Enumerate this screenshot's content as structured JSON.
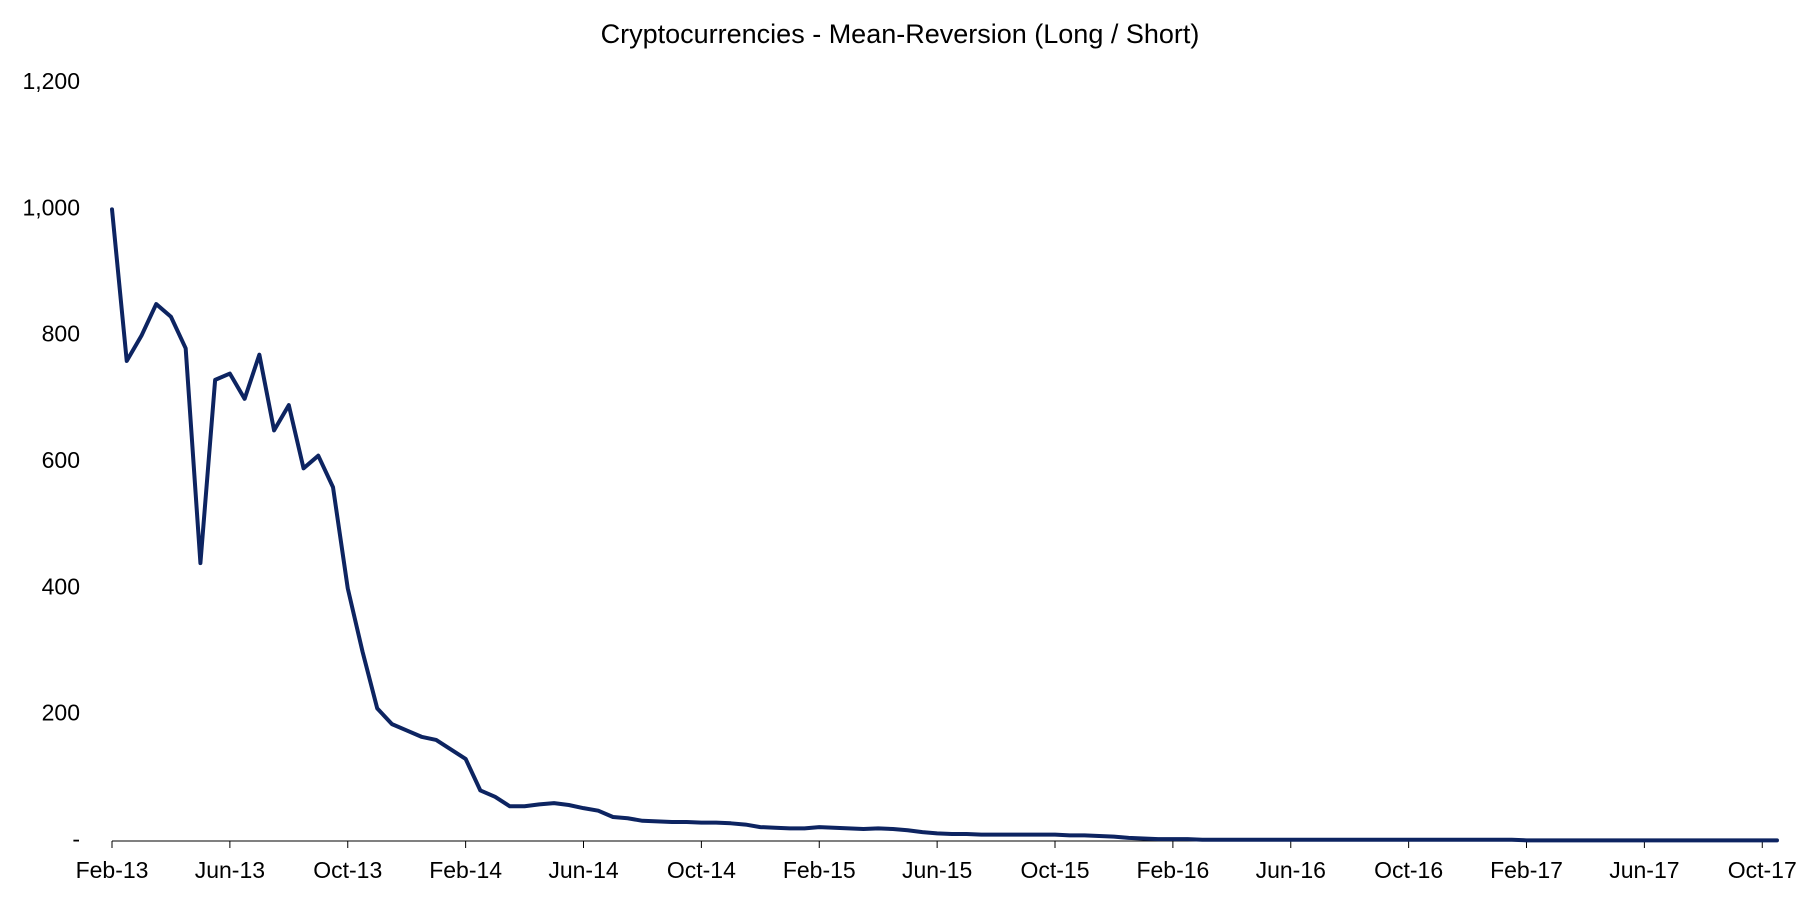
{
  "chart_data": {
    "type": "line",
    "title": "Cryptocurrencies - Mean-Reversion (Long / Short)",
    "categories": [
      "Feb-13",
      null,
      null,
      null,
      null,
      null,
      null,
      null,
      "Jun-13",
      null,
      null,
      null,
      null,
      null,
      null,
      null,
      "Oct-13",
      null,
      null,
      null,
      null,
      null,
      null,
      null,
      "Feb-14",
      null,
      null,
      null,
      null,
      null,
      null,
      null,
      "Jun-14",
      null,
      null,
      null,
      null,
      null,
      null,
      null,
      "Oct-14",
      null,
      null,
      null,
      null,
      null,
      null,
      null,
      "Feb-15",
      null,
      null,
      null,
      null,
      null,
      null,
      null,
      "Jun-15",
      null,
      null,
      null,
      null,
      null,
      null,
      null,
      "Oct-15",
      null,
      null,
      null,
      null,
      null,
      null,
      null,
      "Feb-16",
      null,
      null,
      null,
      null,
      null,
      null,
      null,
      "Jun-16",
      null,
      null,
      null,
      null,
      null,
      null,
      null,
      "Oct-16",
      null,
      null,
      null,
      null,
      null,
      null,
      null,
      "Feb-17",
      null,
      null,
      null,
      null,
      null,
      null,
      null,
      "Jun-17",
      null,
      null,
      null,
      null,
      null,
      null,
      null,
      "Oct-17",
      null
    ],
    "series": [
      {
        "color": "#0d2461",
        "values": [
          1000,
          760,
          800,
          850,
          830,
          780,
          440,
          730,
          740,
          700,
          770,
          650,
          690,
          590,
          610,
          560,
          400,
          300,
          210,
          185,
          175,
          165,
          160,
          145,
          130,
          80,
          70,
          55,
          55,
          58,
          60,
          57,
          52,
          48,
          38,
          36,
          32,
          31,
          30,
          30,
          29,
          29,
          28,
          26,
          22,
          21,
          20,
          20,
          22,
          21,
          20,
          19,
          20,
          19,
          17,
          14,
          12,
          11,
          11,
          10,
          10,
          10,
          10,
          10,
          10,
          9,
          9,
          8,
          7,
          5,
          4,
          3,
          3,
          3,
          2,
          2,
          2,
          2,
          2,
          2,
          2,
          2,
          2,
          2,
          2,
          2,
          2,
          2,
          2,
          2,
          2,
          2,
          2,
          2,
          2,
          2,
          1,
          1,
          1,
          1,
          1,
          1,
          1,
          1,
          1,
          1,
          1,
          1,
          1,
          1,
          1,
          1,
          1,
          1
        ]
      }
    ],
    "ylim": [
      0,
      1200
    ],
    "yticks": [
      {
        "value": 0,
        "label": "-"
      },
      200,
      400,
      600,
      800,
      {
        "value": 1000,
        "label": "1,000"
      },
      {
        "value": 1200,
        "label": "1,200"
      }
    ],
    "grid": false
  }
}
